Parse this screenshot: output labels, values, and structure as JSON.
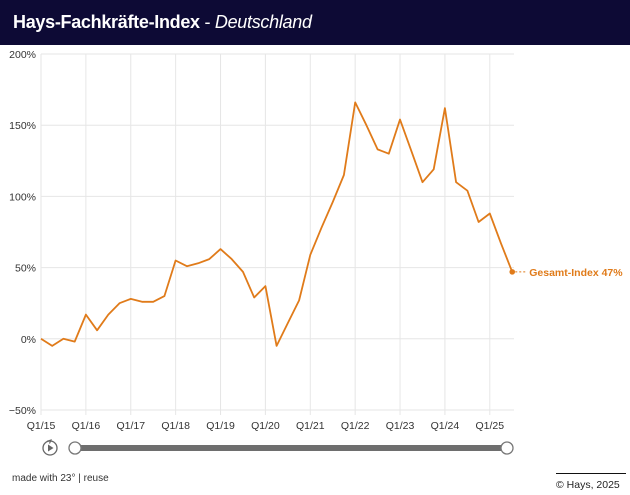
{
  "header": {
    "title_bold": "Hays-Fachkräfte-Index",
    "title_separator": " - ",
    "title_italic": "Deutschland"
  },
  "colors": {
    "header_bg": "#0d0a35",
    "line": "#e07b1a",
    "grid": "#e6e6e6"
  },
  "chart_data": {
    "type": "line",
    "title": "Hays-Fachkräfte-Index - Deutschland",
    "xlabel": "",
    "ylabel": "",
    "ylim": [
      -50,
      200
    ],
    "yticks": [
      "200%",
      "150%",
      "100%",
      "50%",
      "0%",
      "−50%"
    ],
    "ytick_values": [
      200,
      150,
      100,
      50,
      0,
      -50
    ],
    "xticks": [
      "Q1/15",
      "Q1/16",
      "Q1/17",
      "Q1/18",
      "Q1/19",
      "Q1/20",
      "Q1/21",
      "Q1/22",
      "Q1/23",
      "Q1/24",
      "Q1/25"
    ],
    "grid": true,
    "legend": "end-label",
    "x": [
      "Q1/15",
      "Q2/15",
      "Q3/15",
      "Q4/15",
      "Q1/16",
      "Q2/16",
      "Q3/16",
      "Q4/16",
      "Q1/17",
      "Q2/17",
      "Q3/17",
      "Q4/17",
      "Q1/18",
      "Q2/18",
      "Q3/18",
      "Q4/18",
      "Q1/19",
      "Q2/19",
      "Q3/19",
      "Q4/19",
      "Q1/20",
      "Q2/20",
      "Q3/20",
      "Q4/20",
      "Q1/21",
      "Q2/21",
      "Q3/21",
      "Q4/21",
      "Q1/22",
      "Q2/22",
      "Q3/22",
      "Q4/22",
      "Q1/23",
      "Q2/23",
      "Q3/23",
      "Q4/23",
      "Q1/24",
      "Q2/24",
      "Q3/24",
      "Q4/24",
      "Q1/25",
      "Q2/25",
      "Q3/25"
    ],
    "series": [
      {
        "name": "Gesamt-Index",
        "values": [
          0,
          -5,
          0,
          -2,
          17,
          6,
          17,
          25,
          28,
          26,
          26,
          30,
          55,
          51,
          53,
          56,
          63,
          56,
          47,
          29,
          37,
          -5,
          11,
          27,
          59,
          78,
          96,
          115,
          166,
          150,
          133,
          130,
          154,
          132,
          110,
          119,
          162,
          110,
          104,
          82,
          88,
          67,
          47
        ]
      }
    ],
    "end_label": "Gesamt-Index 47%"
  },
  "controls": {
    "play_icon": "replay-play-icon",
    "slider_start": "Q1/15",
    "slider_end": "Q3/25"
  },
  "footer": {
    "left": "made with 23° | reuse",
    "right": "© Hays, 2025"
  }
}
